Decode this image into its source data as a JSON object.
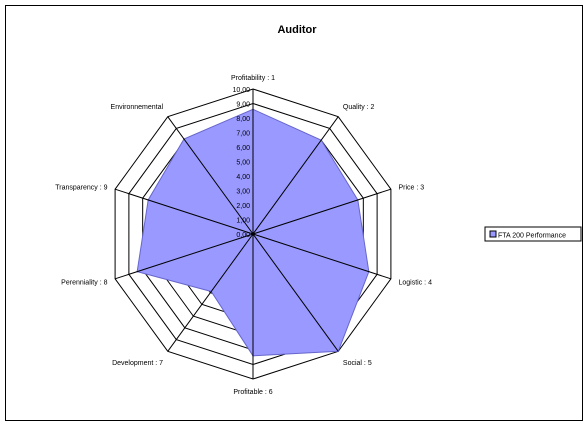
{
  "chart_data": {
    "type": "radar",
    "title": "Auditor",
    "categories": [
      "Profitability : 1",
      "Quality : 2",
      "Price : 3",
      "Logistic : 4",
      "Social : 5",
      "Profitable : 6",
      "Development : 7",
      "Perenniality : 8",
      "Transparency : 9",
      "Environnemental"
    ],
    "tick_labels": [
      "0,00",
      "1,00",
      "2,00",
      "3,00",
      "4,00",
      "5,00",
      "6,00",
      "7,00",
      "8,00",
      "9,00",
      "10,00"
    ],
    "rmin": 0,
    "rmax": 10,
    "series": [
      {
        "name": "FTA 200 Performance",
        "values": [
          8.6,
          8.0,
          7.6,
          8.4,
          10.0,
          8.4,
          4.9,
          8.4,
          7.6,
          8.1
        ]
      }
    ],
    "legend_position": "right",
    "colors": {
      "fill": "#9999ff",
      "stroke": "#6666cc",
      "grid": "#000000"
    }
  }
}
